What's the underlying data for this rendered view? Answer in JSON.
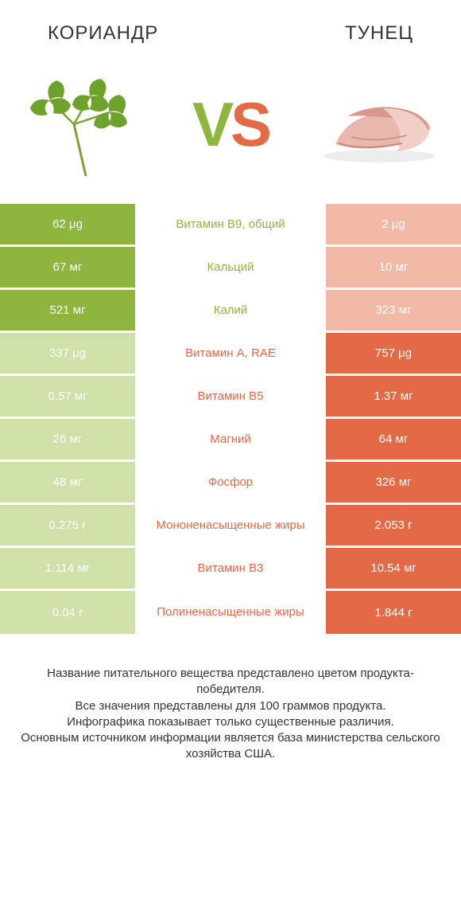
{
  "colors": {
    "left_win": "#8eb53e",
    "left_dim": "#cfe0a8",
    "right_win": "#e46a47",
    "right_dim": "#f3b9a7",
    "mid_bg": "#ffffff"
  },
  "header": {
    "left_title": "Кориандр",
    "right_title": "Тунец"
  },
  "vs": {
    "v": "V",
    "s": "S"
  },
  "rows": [
    {
      "nutrient": "Витамин B9, общий",
      "left": "62 µg",
      "right": "2 µg",
      "winner": "left"
    },
    {
      "nutrient": "Кальций",
      "left": "67 мг",
      "right": "10 мг",
      "winner": "left"
    },
    {
      "nutrient": "Калий",
      "left": "521 мг",
      "right": "323 мг",
      "winner": "left"
    },
    {
      "nutrient": "Витамин A, RAE",
      "left": "337 µg",
      "right": "757 µg",
      "winner": "right"
    },
    {
      "nutrient": "Витамин B5",
      "left": "0.57 мг",
      "right": "1.37 мг",
      "winner": "right"
    },
    {
      "nutrient": "Магний",
      "left": "26 мг",
      "right": "64 мг",
      "winner": "right"
    },
    {
      "nutrient": "Фосфор",
      "left": "48 мг",
      "right": "326 мг",
      "winner": "right"
    },
    {
      "nutrient": "Мононенасыщенные жиры",
      "left": "0.275 г",
      "right": "2.053 г",
      "winner": "right"
    },
    {
      "nutrient": "Витамин B3",
      "left": "1.114 мг",
      "right": "10.54 мг",
      "winner": "right"
    },
    {
      "nutrient": "Полиненасыщенные жиры",
      "left": "0.04 г",
      "right": "1.844 г",
      "winner": "right"
    }
  ],
  "footer": {
    "line1": "Название питательного вещества представлено цветом продукта-победителя.",
    "line2": "Все значения представлены для 100 граммов продукта.",
    "line3": "Инфографика показывает только существенные различия.",
    "line4": "Основным источником информации является база министерства сельского хозяйства США."
  }
}
